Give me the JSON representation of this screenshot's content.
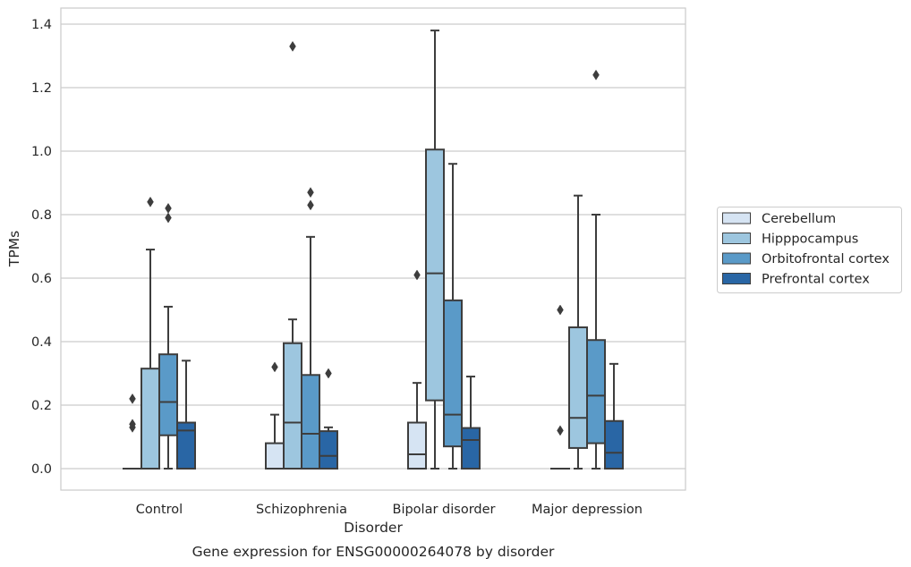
{
  "chart_data": {
    "type": "boxplot",
    "xlabel": "Disorder",
    "ylabel": "TPMs",
    "caption": "Gene expression for ENSG00000264078 by disorder",
    "ylim": [
      -0.065,
      1.45
    ],
    "yticks": [
      "0.0",
      "0.2",
      "0.4",
      "0.6",
      "0.8",
      "1.0",
      "1.2",
      "1.4"
    ],
    "grid": true,
    "legend_position": "right",
    "categories": [
      "Control",
      "Schizophrenia",
      "Bipolar disorder",
      "Major depression"
    ],
    "series": [
      {
        "name": "Cerebellum",
        "color": "#d6e4f3",
        "boxes": [
          {
            "q1": 0.0,
            "median": 0.0,
            "q3": 0.0,
            "whislo": 0.0,
            "whishi": 0.0,
            "fliers": [
              0.13,
              0.14,
              0.22
            ]
          },
          {
            "q1": 0.0,
            "median": 0.0,
            "q3": 0.08,
            "whislo": 0.0,
            "whishi": 0.17,
            "fliers": [
              0.32
            ]
          },
          {
            "q1": 0.0,
            "median": 0.045,
            "q3": 0.145,
            "whislo": 0.0,
            "whishi": 0.27,
            "fliers": [
              0.61
            ]
          },
          {
            "q1": 0.0,
            "median": 0.0,
            "q3": 0.0,
            "whislo": 0.0,
            "whishi": 0.0,
            "fliers": [
              0.12,
              0.5
            ]
          }
        ]
      },
      {
        "name": "Hipppocampus",
        "color": "#9dc6df",
        "boxes": [
          {
            "q1": 0.0,
            "median": 0.0,
            "q3": 0.315,
            "whislo": 0.0,
            "whishi": 0.69,
            "fliers": [
              0.84
            ]
          },
          {
            "q1": 0.0,
            "median": 0.145,
            "q3": 0.395,
            "whislo": 0.0,
            "whishi": 0.47,
            "fliers": [
              1.33
            ]
          },
          {
            "q1": 0.215,
            "median": 0.615,
            "q3": 1.005,
            "whislo": 0.0,
            "whishi": 1.38,
            "fliers": []
          },
          {
            "q1": 0.065,
            "median": 0.16,
            "q3": 0.445,
            "whislo": 0.0,
            "whishi": 0.86,
            "fliers": []
          }
        ]
      },
      {
        "name": "Orbitofrontal cortex",
        "color": "#5a9ac8",
        "boxes": [
          {
            "q1": 0.105,
            "median": 0.21,
            "q3": 0.36,
            "whislo": 0.0,
            "whishi": 0.51,
            "fliers": [
              0.79,
              0.82
            ]
          },
          {
            "q1": 0.0,
            "median": 0.11,
            "q3": 0.295,
            "whislo": 0.0,
            "whishi": 0.73,
            "fliers": [
              0.83,
              0.87
            ]
          },
          {
            "q1": 0.07,
            "median": 0.17,
            "q3": 0.53,
            "whislo": 0.0,
            "whishi": 0.96,
            "fliers": []
          },
          {
            "q1": 0.08,
            "median": 0.23,
            "q3": 0.405,
            "whislo": 0.0,
            "whishi": 0.8,
            "fliers": [
              1.24
            ]
          }
        ]
      },
      {
        "name": "Prefrontal cortex",
        "color": "#2966a5",
        "boxes": [
          {
            "q1": 0.0,
            "median": 0.12,
            "q3": 0.145,
            "whislo": 0.0,
            "whishi": 0.34,
            "fliers": []
          },
          {
            "q1": 0.0,
            "median": 0.04,
            "q3": 0.118,
            "whislo": 0.0,
            "whishi": 0.13,
            "fliers": [
              0.3
            ]
          },
          {
            "q1": 0.0,
            "median": 0.09,
            "q3": 0.128,
            "whislo": 0.0,
            "whishi": 0.29,
            "fliers": []
          },
          {
            "q1": 0.0,
            "median": 0.05,
            "q3": 0.15,
            "whislo": 0.0,
            "whishi": 0.33,
            "fliers": []
          }
        ]
      }
    ]
  }
}
